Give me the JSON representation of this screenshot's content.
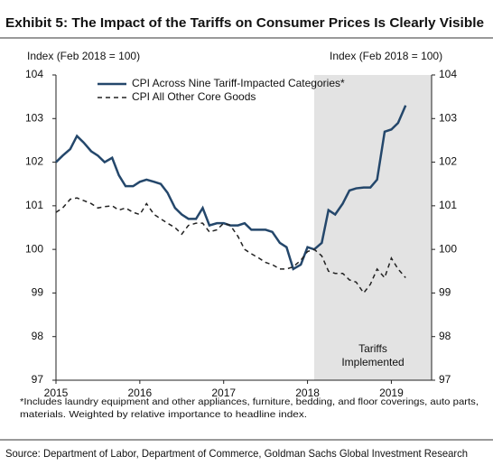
{
  "chart_data": {
    "type": "line",
    "title": "Exhibit 5: The Impact of the Tariffs on Consumer Prices Is Clearly Visible",
    "ylabel": "Index (Feb 2018 = 100)",
    "y2label": "Index (Feb 2018 = 100)",
    "x": [
      2015.0,
      2015.08,
      2015.17,
      2015.25,
      2015.33,
      2015.42,
      2015.5,
      2015.58,
      2015.67,
      2015.75,
      2015.83,
      2015.92,
      2016.0,
      2016.08,
      2016.17,
      2016.25,
      2016.33,
      2016.42,
      2016.5,
      2016.58,
      2016.67,
      2016.75,
      2016.83,
      2016.92,
      2017.0,
      2017.08,
      2017.17,
      2017.25,
      2017.33,
      2017.42,
      2017.5,
      2017.58,
      2017.67,
      2017.75,
      2017.83,
      2017.92,
      2018.0,
      2018.08,
      2018.17,
      2018.25,
      2018.33,
      2018.42,
      2018.5,
      2018.58,
      2018.67,
      2018.75,
      2018.83,
      2018.92,
      2019.0,
      2019.08,
      2019.17
    ],
    "series": [
      {
        "name": "CPI Across Nine Tariff-Impacted Categories*",
        "color": "#24476b",
        "dash": false,
        "values": [
          102.0,
          102.15,
          102.3,
          102.6,
          102.45,
          102.25,
          102.15,
          102.0,
          102.1,
          101.7,
          101.45,
          101.45,
          101.55,
          101.6,
          101.55,
          101.5,
          101.3,
          100.95,
          100.8,
          100.7,
          100.7,
          100.95,
          100.55,
          100.6,
          100.6,
          100.55,
          100.55,
          100.6,
          100.45,
          100.45,
          100.45,
          100.4,
          100.15,
          100.05,
          99.55,
          99.65,
          100.05,
          100.0,
          100.15,
          100.9,
          100.8,
          101.05,
          101.35,
          101.4,
          101.42,
          101.42,
          101.6,
          102.7,
          102.75,
          102.9,
          103.3
        ]
      },
      {
        "name": "CPI All Other Core Goods",
        "color": "#222222",
        "dash": true,
        "values": [
          100.85,
          100.95,
          101.15,
          101.18,
          101.12,
          101.05,
          100.95,
          100.98,
          101.0,
          100.9,
          100.95,
          100.85,
          100.8,
          101.05,
          100.8,
          100.7,
          100.6,
          100.5,
          100.35,
          100.55,
          100.6,
          100.6,
          100.4,
          100.45,
          100.6,
          100.55,
          100.3,
          100.0,
          99.9,
          99.8,
          99.7,
          99.65,
          99.55,
          99.55,
          99.6,
          99.75,
          99.95,
          100.0,
          99.85,
          99.5,
          99.45,
          99.45,
          99.3,
          99.25,
          99.0,
          99.2,
          99.55,
          99.35,
          99.8,
          99.55,
          99.35
        ]
      }
    ],
    "xlim": [
      2015,
      2019.48
    ],
    "xticks": [
      2015,
      2016,
      2017,
      2018,
      2019
    ],
    "ylim": [
      97,
      104
    ],
    "yticks": [
      97,
      98,
      99,
      100,
      101,
      102,
      103,
      104
    ],
    "y2lim": [
      97,
      104
    ],
    "y2ticks": [
      97,
      98,
      99,
      100,
      101,
      102,
      103,
      104
    ],
    "shaded_region": {
      "xlim": [
        2018.08,
        2019.48
      ],
      "color": "#e3e3e3",
      "label": [
        "Tariffs",
        "Implemented"
      ]
    },
    "legend": "upper left",
    "footnote": [
      "*Includes laundry equipment and other appliances, furniture, bedding, and floor coverings, auto parts,",
      "materials. Weighted by relative importance to headline index."
    ],
    "source": "Source: Department of Labor, Department of Commerce, Goldman Sachs Global Investment Research"
  }
}
